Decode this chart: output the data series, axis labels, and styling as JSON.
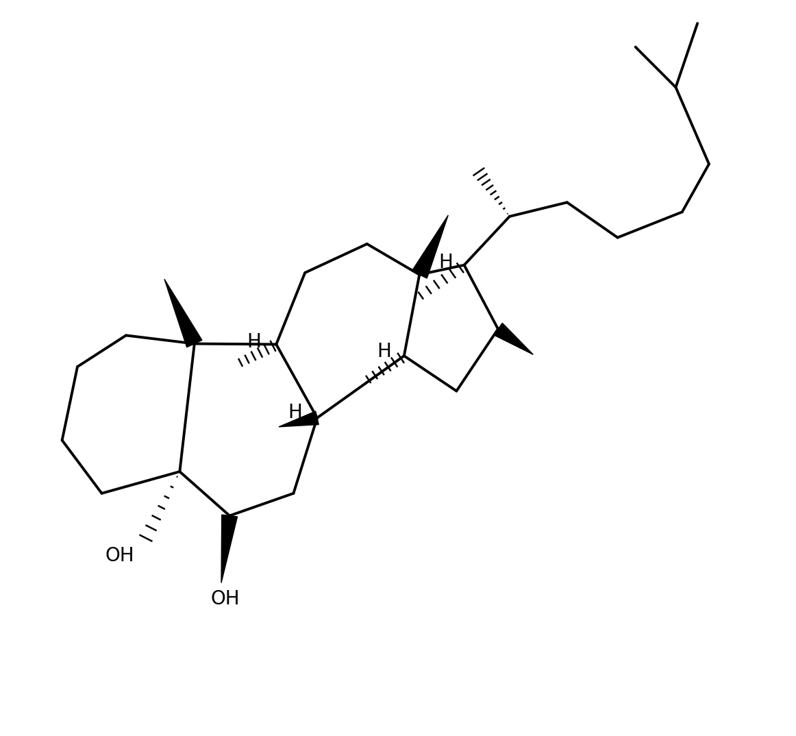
{
  "bg_color": "#ffffff",
  "bond_color": "#000000",
  "line_width": 2.8,
  "label_fontsize": 20,
  "figsize": [
    11.62,
    10.74
  ],
  "dpi": 100,
  "xlim": [
    0,
    13.5
  ],
  "ylim": [
    -1.5,
    12.5
  ]
}
